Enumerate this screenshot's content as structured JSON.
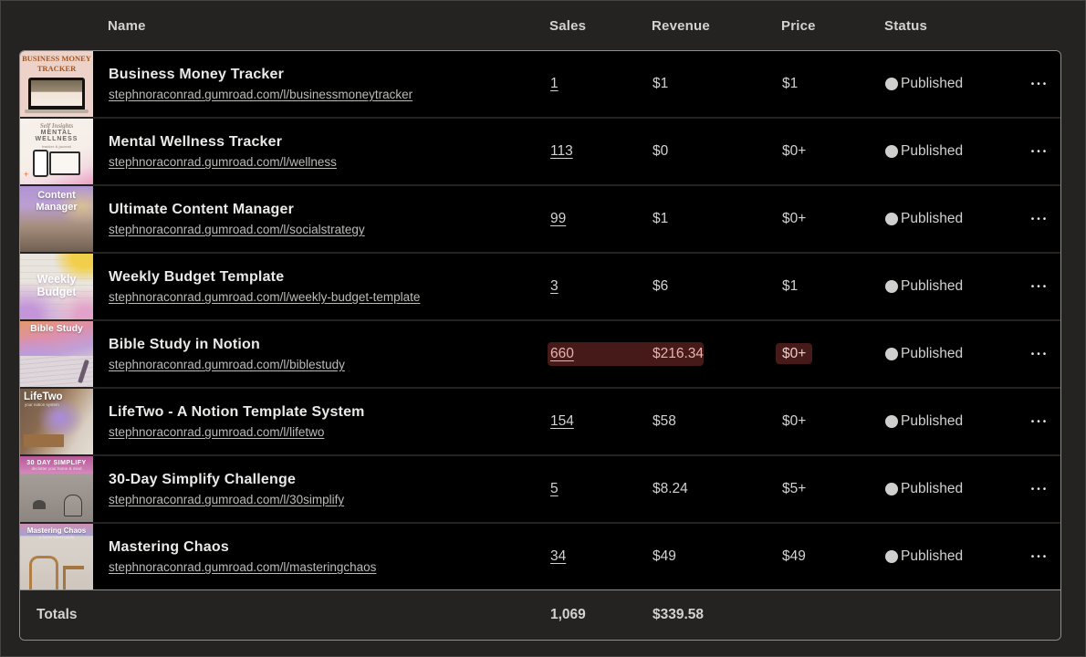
{
  "table": {
    "columns": {
      "name": "Name",
      "sales": "Sales",
      "revenue": "Revenue",
      "price": "Price",
      "status": "Status"
    },
    "rows": [
      {
        "name": "Business Money Tracker",
        "url": "stephnoraconrad.gumroad.com/l/businessmoneytracker",
        "sales": "1",
        "revenue": "$1",
        "price": "$1",
        "status": "Published",
        "thumb_text": "BUSINESS MONEY TRACKER",
        "highlighted": false
      },
      {
        "name": "Mental Wellness Tracker",
        "url": "stephnoraconrad.gumroad.com/l/wellness",
        "sales": "113",
        "revenue": "$0",
        "price": "$0+",
        "status": "Published",
        "thumb_text": "MENTAL WELLNESS",
        "highlighted": false
      },
      {
        "name": "Ultimate Content Manager",
        "url": "stephnoraconrad.gumroad.com/l/socialstrategy",
        "sales": "99",
        "revenue": "$1",
        "price": "$0+",
        "status": "Published",
        "thumb_text": "Content Manager",
        "highlighted": false
      },
      {
        "name": "Weekly Budget Template",
        "url": "stephnoraconrad.gumroad.com/l/weekly-budget-template",
        "sales": "3",
        "revenue": "$6",
        "price": "$1",
        "status": "Published",
        "thumb_text": "Weekly Budget",
        "highlighted": false
      },
      {
        "name": "Bible Study in Notion",
        "url": "stephnoraconrad.gumroad.com/l/biblestudy",
        "sales": "660",
        "revenue": "$216.34",
        "price": "$0+",
        "status": "Published",
        "thumb_text": "Bible Study",
        "highlighted": true
      },
      {
        "name": "LifeTwo - A Notion Template System",
        "url": "stephnoraconrad.gumroad.com/l/lifetwo",
        "sales": "154",
        "revenue": "$58",
        "price": "$0+",
        "status": "Published",
        "thumb_text": "LifeTwo",
        "highlighted": false
      },
      {
        "name": "30-Day Simplify Challenge",
        "url": "stephnoraconrad.gumroad.com/l/30simplify",
        "sales": "5",
        "revenue": "$8.24",
        "price": "$5+",
        "status": "Published",
        "thumb_text": "30 DAY SIMPLIFY",
        "highlighted": false
      },
      {
        "name": "Mastering Chaos",
        "url": "stephnoraconrad.gumroad.com/l/masteringchaos",
        "sales": "34",
        "revenue": "$49",
        "price": "$49",
        "status": "Published",
        "thumb_text": "Mastering Chaos",
        "highlighted": false
      }
    ],
    "totals": {
      "label": "Totals",
      "sales": "1,069",
      "revenue": "$339.58"
    }
  },
  "icons": {
    "menu": "•••",
    "status_dot": "circle"
  },
  "colors": {
    "page_bg": "#242322",
    "row_bg": "#000000",
    "table_border": "#8e8e8c",
    "text": "#d2d2d1",
    "highlight_bg": "#451a19",
    "highlight_text": "#e9b3ac"
  }
}
